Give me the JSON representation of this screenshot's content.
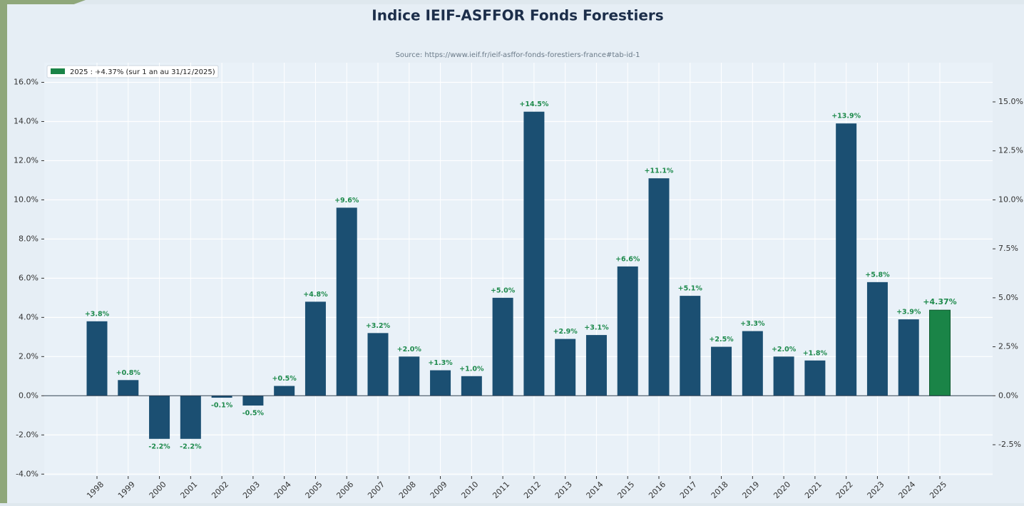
{
  "chart_data": {
    "type": "bar",
    "title": "Indice IEIF-ASFFOR Fonds Forestiers",
    "subtitle": "Source: https://www.ieif.fr/ieif-asffor-fonds-forestiers-france#tab-id-1",
    "legend": "2025 : +4.37% (sur 1 an au 31/12/2025)",
    "legend_position": "upper left",
    "legend_color": "#1a8447",
    "categories": [
      "1998",
      "1999",
      "2000",
      "2001",
      "2002",
      "2003",
      "2004",
      "2005",
      "2006",
      "2007",
      "2008",
      "2009",
      "2010",
      "2011",
      "2012",
      "2013",
      "2014",
      "2015",
      "2016",
      "2017",
      "2018",
      "2019",
      "2020",
      "2021",
      "2022",
      "2023",
      "2024",
      "2025"
    ],
    "values": [
      3.8,
      0.8,
      -2.2,
      -2.2,
      -0.1,
      -0.5,
      0.5,
      4.8,
      9.6,
      3.2,
      2.0,
      1.3,
      1.0,
      5.0,
      14.5,
      2.9,
      3.1,
      6.6,
      11.1,
      5.1,
      2.5,
      3.3,
      2.0,
      1.8,
      13.9,
      5.8,
      3.9,
      4.37
    ],
    "value_labels": [
      "+3.8%",
      "+0.8%",
      "-2.2%",
      "-2.2%",
      "-0.1%",
      "-0.5%",
      "+0.5%",
      "+4.8%",
      "+9.6%",
      "+3.2%",
      "+2.0%",
      "+1.3%",
      "+1.0%",
      "+5.0%",
      "+14.5%",
      "+2.9%",
      "+3.1%",
      "+6.6%",
      "+11.1%",
      "+5.1%",
      "+2.5%",
      "+3.3%",
      "+2.0%",
      "+1.8%",
      "+13.9%",
      "+5.8%",
      "+3.9%",
      "+4.37%"
    ],
    "colors": [
      "#1b4f72",
      "#1b4f72",
      "#1b4f72",
      "#1b4f72",
      "#1b4f72",
      "#1b4f72",
      "#1b4f72",
      "#1b4f72",
      "#1b4f72",
      "#1b4f72",
      "#1b4f72",
      "#1b4f72",
      "#1b4f72",
      "#1b4f72",
      "#1b4f72",
      "#1b4f72",
      "#1b4f72",
      "#1b4f72",
      "#1b4f72",
      "#1b4f72",
      "#1b4f72",
      "#1b4f72",
      "#1b4f72",
      "#1b4f72",
      "#1b4f72",
      "#1b4f72",
      "#1b4f72",
      "#1a8447"
    ],
    "label_color": "#1e8a4c",
    "ylim": [
      -4.1,
      17
    ],
    "yticks": [
      {
        "value": -4,
        "label": "-4.0%"
      },
      {
        "value": -2,
        "label": "-2.0%"
      },
      {
        "value": 0,
        "label": "0.0%"
      },
      {
        "value": 2,
        "label": "2.0%"
      },
      {
        "value": 4,
        "label": "4.0%"
      },
      {
        "value": 6,
        "label": "6.0%"
      },
      {
        "value": 8,
        "label": "8.0%"
      },
      {
        "value": 10,
        "label": "10.0%"
      },
      {
        "value": 12,
        "label": "12.0%"
      },
      {
        "value": 14,
        "label": "14.0%"
      },
      {
        "value": 16,
        "label": "16.0%"
      }
    ],
    "y2lim": [
      -4.1,
      17
    ],
    "y2ticks": [
      {
        "value": -2.5,
        "label": "-2.5%"
      },
      {
        "value": 0,
        "label": "0.0%"
      },
      {
        "value": 2.5,
        "label": "2.5%"
      },
      {
        "value": 5,
        "label": "5.0%"
      },
      {
        "value": 7.5,
        "label": "7.5%"
      },
      {
        "value": 10,
        "label": "10.0%"
      },
      {
        "value": 12.5,
        "label": "12.5%"
      },
      {
        "value": 15,
        "label": "15.0%"
      }
    ],
    "grid": true
  }
}
